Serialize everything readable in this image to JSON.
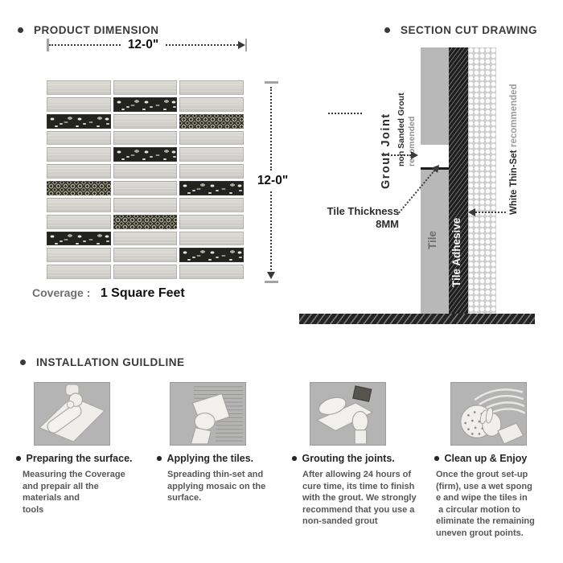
{
  "sheet": {
    "background": "#ffffff"
  },
  "product_dimension": {
    "title": "PRODUCT DIMENSION",
    "width_label": "12-0\"",
    "height_label": "12-0\"",
    "coverage_label": "Coverage :",
    "coverage_value": "1 Square Feet",
    "mosaic": {
      "rows": 12,
      "cols": 3,
      "pattern": [
        [
          "L",
          "L",
          "L"
        ],
        [
          "L",
          "S",
          "L"
        ],
        [
          "S",
          "L",
          "C"
        ],
        [
          "L",
          "L",
          "L"
        ],
        [
          "L",
          "S",
          "L"
        ],
        [
          "L",
          "L",
          "L"
        ],
        [
          "C",
          "L",
          "S"
        ],
        [
          "L",
          "L",
          "L"
        ],
        [
          "L",
          "C",
          "L"
        ],
        [
          "S",
          "L",
          "L"
        ],
        [
          "L",
          "L",
          "S"
        ],
        [
          "L",
          "L",
          "L"
        ]
      ],
      "legend": {
        "L": "light-stone-tile",
        "S": "dark-glass-sparkle-tile",
        "C": "dark-penny-round-tile"
      }
    }
  },
  "section_cut": {
    "title": "SECTION CUT DRAWING",
    "grout_joint_label": "Grout Joint",
    "non_sanded_label": "non Sanded Grout",
    "non_sanded_note": "recomended",
    "tile_thickness_label": "Tile Thickness",
    "tile_thickness_value": "8MM",
    "tile_label": "Tile",
    "tile_adhesive_label": "Tile Adhesive",
    "thinset_label": "White Thin-Set",
    "thinset_note": "recommended"
  },
  "installation": {
    "title": "INSTALLATION GUILDLINE",
    "steps": [
      {
        "title": "Preparing the surface.",
        "body": "Measuring the Coverage\nand prepair all the\nmaterials and\ntools",
        "icon": "roller-icon"
      },
      {
        "title": "Applying the tiles.",
        "body": "Spreading thin-set and\napplying mosaic on the\nsurface.",
        "icon": "trowel-icon"
      },
      {
        "title": "Grouting the joints.",
        "body": "After allowing 24 hours of\ncure time, its time to finish\nwith the grout. We strongly\nrecommend that you use a\nnon-sanded grout",
        "icon": "grout-float-icon"
      },
      {
        "title": "Clean up & Enjoy",
        "body": "Once the grout set-up\n(firm), use a wet spong\ne and wipe the tiles in\n a circular motion to\neliminate the remaining\nuneven grout points.",
        "icon": "sponge-icon"
      }
    ]
  },
  "colors": {
    "heading_text": "#3a3a3a",
    "body_text": "#57575a",
    "dimension_text": "#111111",
    "coverage_label_text": "#6f6f6f",
    "tile_section_gray": "#b8b8b8",
    "adhesive_black": "#1d1d1d",
    "thinset_dot_bg": "#cecece",
    "step_box_bg": "#b4b4b4"
  }
}
